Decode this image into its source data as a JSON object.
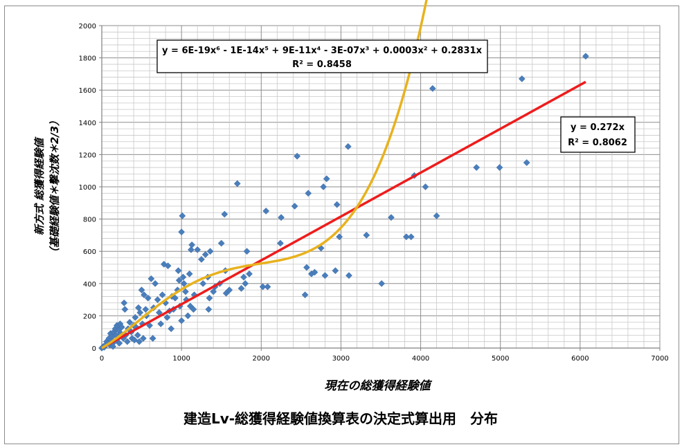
{
  "chart_data": {
    "type": "scatter",
    "title": "建造Lv-総獲得経験値換算表の決定式算出用　分布",
    "xlabel": "現在の総獲得経験値",
    "ylabel_line1": "新方式 総獲得経験値",
    "ylabel_line2": "（基礎経験値＊撃沈数＊2/3）",
    "xlim": [
      0,
      7000
    ],
    "ylim": [
      0,
      2000
    ],
    "x_ticks": [
      "0",
      "1000",
      "2000",
      "3000",
      "4000",
      "5000",
      "6000",
      "7000"
    ],
    "y_ticks": [
      "0",
      "200",
      "400",
      "600",
      "800",
      "1000",
      "1200",
      "1400",
      "1600",
      "1800",
      "2000"
    ],
    "grid": true,
    "colors": {
      "points": "#4a7ebb",
      "linear": "#ee1c1c",
      "poly": "#e8b21e",
      "grid": "#a0a0a0"
    },
    "trendlines": {
      "poly": {
        "label_line1": "y = 6E-19x⁶ - 1E-14x⁵ + 9E-11x⁴ - 3E-07x³ + 0.0003x² + 0.2831x",
        "label_line2": "R² = 0.8458",
        "coefficients": [
          0,
          0.2831,
          0.0003,
          -3e-07,
          9e-11,
          -1e-14,
          6e-19
        ],
        "x_range": [
          0,
          6070
        ]
      },
      "linear": {
        "label_line1": "y = 0.272x",
        "label_line2": "R² = 0.8062",
        "slope": 0.272,
        "x_range": [
          0,
          6070
        ]
      }
    },
    "points": [
      [
        0,
        0
      ],
      [
        20,
        10
      ],
      [
        30,
        5
      ],
      [
        50,
        20
      ],
      [
        60,
        40
      ],
      [
        80,
        30
      ],
      [
        90,
        60
      ],
      [
        100,
        20
      ],
      [
        110,
        90
      ],
      [
        120,
        50
      ],
      [
        130,
        70
      ],
      [
        140,
        10
      ],
      [
        150,
        100
      ],
      [
        160,
        40
      ],
      [
        170,
        120
      ],
      [
        180,
        80
      ],
      [
        190,
        140
      ],
      [
        200,
        60
      ],
      [
        210,
        110
      ],
      [
        220,
        30
      ],
      [
        230,
        150
      ],
      [
        240,
        90
      ],
      [
        250,
        130
      ],
      [
        270,
        60
      ],
      [
        280,
        280
      ],
      [
        290,
        240
      ],
      [
        300,
        80
      ],
      [
        320,
        40
      ],
      [
        330,
        120
      ],
      [
        350,
        160
      ],
      [
        370,
        100
      ],
      [
        380,
        60
      ],
      [
        400,
        140
      ],
      [
        410,
        50
      ],
      [
        420,
        190
      ],
      [
        430,
        130
      ],
      [
        450,
        80
      ],
      [
        460,
        250
      ],
      [
        470,
        40
      ],
      [
        480,
        220
      ],
      [
        500,
        360
      ],
      [
        510,
        150
      ],
      [
        520,
        60
      ],
      [
        530,
        330
      ],
      [
        550,
        240
      ],
      [
        560,
        200
      ],
      [
        580,
        310
      ],
      [
        600,
        140
      ],
      [
        620,
        430
      ],
      [
        640,
        60
      ],
      [
        650,
        250
      ],
      [
        670,
        400
      ],
      [
        700,
        300
      ],
      [
        720,
        220
      ],
      [
        740,
        150
      ],
      [
        760,
        330
      ],
      [
        780,
        520
      ],
      [
        800,
        280
      ],
      [
        820,
        190
      ],
      [
        830,
        510
      ],
      [
        850,
        230
      ],
      [
        870,
        120
      ],
      [
        880,
        320
      ],
      [
        900,
        240
      ],
      [
        920,
        310
      ],
      [
        950,
        360
      ],
      [
        960,
        480
      ],
      [
        970,
        420
      ],
      [
        980,
        260
      ],
      [
        1000,
        170
      ],
      [
        1000,
        720
      ],
      [
        1010,
        820
      ],
      [
        1020,
        440
      ],
      [
        1030,
        400
      ],
      [
        1050,
        350
      ],
      [
        1060,
        300
      ],
      [
        1080,
        200
      ],
      [
        1100,
        460
      ],
      [
        1110,
        260
      ],
      [
        1120,
        610
      ],
      [
        1130,
        640
      ],
      [
        1150,
        240
      ],
      [
        1160,
        330
      ],
      [
        1200,
        610
      ],
      [
        1250,
        550
      ],
      [
        1270,
        400
      ],
      [
        1300,
        580
      ],
      [
        1330,
        440
      ],
      [
        1340,
        240
      ],
      [
        1350,
        310
      ],
      [
        1360,
        600
      ],
      [
        1400,
        350
      ],
      [
        1420,
        380
      ],
      [
        1480,
        400
      ],
      [
        1500,
        650
      ],
      [
        1540,
        830
      ],
      [
        1550,
        480
      ],
      [
        1560,
        340
      ],
      [
        1600,
        360
      ],
      [
        1700,
        1020
      ],
      [
        1750,
        370
      ],
      [
        1780,
        440
      ],
      [
        1800,
        400
      ],
      [
        1820,
        600
      ],
      [
        1850,
        460
      ],
      [
        2020,
        380
      ],
      [
        2060,
        850
      ],
      [
        2080,
        380
      ],
      [
        2240,
        650
      ],
      [
        2250,
        810
      ],
      [
        2420,
        880
      ],
      [
        2450,
        1190
      ],
      [
        2550,
        330
      ],
      [
        2570,
        500
      ],
      [
        2590,
        960
      ],
      [
        2630,
        460
      ],
      [
        2670,
        470
      ],
      [
        2750,
        620
      ],
      [
        2780,
        1000
      ],
      [
        2800,
        450
      ],
      [
        2820,
        1050
      ],
      [
        2930,
        480
      ],
      [
        2950,
        890
      ],
      [
        2980,
        690
      ],
      [
        3090,
        1250
      ],
      [
        3100,
        450
      ],
      [
        3320,
        700
      ],
      [
        3510,
        400
      ],
      [
        3630,
        810
      ],
      [
        3820,
        690
      ],
      [
        3880,
        690
      ],
      [
        3920,
        1070
      ],
      [
        4060,
        1000
      ],
      [
        4150,
        1610
      ],
      [
        4200,
        820
      ],
      [
        4700,
        1120
      ],
      [
        4990,
        1120
      ],
      [
        5270,
        1670
      ],
      [
        5330,
        1150
      ],
      [
        6070,
        1810
      ]
    ]
  }
}
